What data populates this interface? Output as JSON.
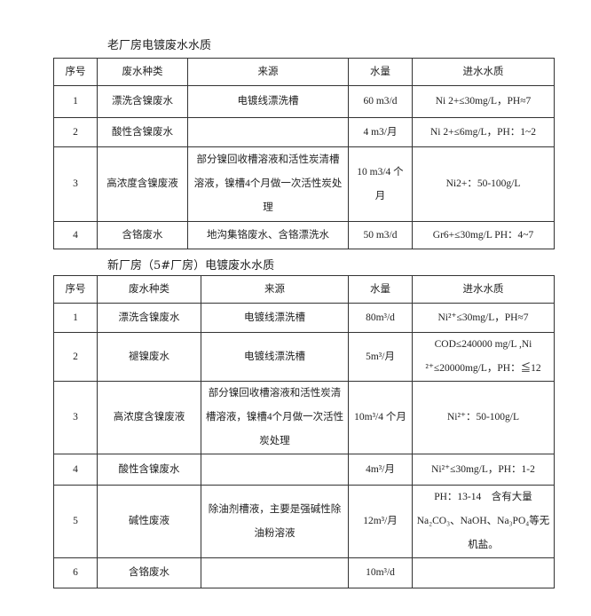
{
  "old_plant": {
    "title": "老厂房电镀废水水质",
    "headers": [
      "序号",
      "废水种类",
      "来源",
      "水量",
      "进水水质"
    ],
    "rows": [
      [
        "1",
        "漂洗含镍废水",
        "电镀线漂洗槽",
        "60 m3/d",
        "Ni 2+≤30mg/L，PH≈7"
      ],
      [
        "2",
        "酸性含镍废水",
        "",
        "4 m3/月",
        "Ni 2+≤6mg/L，PH：1~2"
      ],
      [
        "3",
        "高浓度含镍废液",
        "部分镍回收槽溶液和活性炭清槽溶液，镍槽4个月做一次活性炭处理",
        "10 m3/4 个月",
        "Ni2+：50-100g/L"
      ],
      [
        "4",
        "含铬废水",
        "地沟集铬废水、含铬漂洗水",
        "50 m3/d",
        "Gr6+≤30mg/L PH：4~7"
      ]
    ]
  },
  "new_plant": {
    "title": "新厂房（5#厂房）电镀废水水质",
    "headers": [
      "序号",
      "废水种类",
      "来源",
      "水量",
      "进水水质"
    ],
    "rows": [
      [
        "1",
        "漂洗含镍废水",
        "电镀线漂洗槽",
        "80m³/d",
        "Ni²⁺≤30mg/L，PH≈7"
      ],
      [
        "2",
        "褪镍废水",
        "电镀线漂洗槽",
        "5m³/月",
        "COD≤240000 mg/L ,Ni ²⁺≤20000mg/L，PH：≦12"
      ],
      [
        "3",
        "高浓度含镍废液",
        "部分镍回收槽溶液和活性炭清槽溶液，镍槽4个月做一次活性炭处理",
        "10m³/4 个月",
        "Ni²⁺：50-100g/L"
      ],
      [
        "4",
        "酸性含镍废水",
        "",
        "4m³/月",
        "Ni²⁺≤30mg/L，PH：1-2"
      ],
      [
        "5",
        "碱性废液",
        "除油剂槽液，主要是强碱性除油粉溶液",
        "12m³/月",
        "PH：13-14　含有大量Na₂CO₃、NaOH、Na₃PO₄等无机盐。"
      ],
      [
        "6",
        "含铬废水",
        "",
        "10m³/d",
        ""
      ]
    ]
  }
}
